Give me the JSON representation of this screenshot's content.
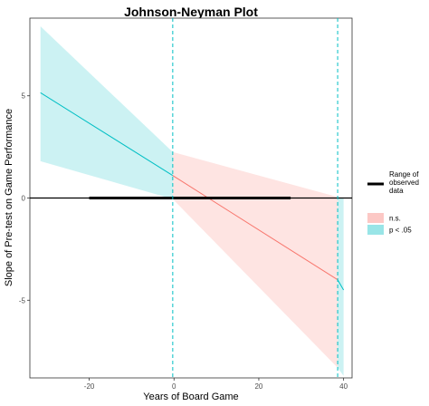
{
  "chart_data": {
    "type": "line",
    "title": "Johnson-Neyman Plot",
    "xlabel": "Years of Board Game",
    "ylabel": "Slope of Pre-test on Game Performance",
    "xlim": [
      -34,
      42
    ],
    "ylim": [
      -8.8,
      8.8
    ],
    "x_ticks": [
      -20,
      0,
      20,
      40
    ],
    "x_tick_labels": [
      "-20",
      "0",
      "20",
      "40"
    ],
    "y_ticks": [
      5,
      0,
      -5
    ],
    "y_tick_labels": [
      "5",
      "0",
      "-5"
    ],
    "grid": false,
    "jn_points": [
      -0.3,
      38.6
    ],
    "horizontal_reference": 0,
    "series": [
      {
        "name": "p < .05",
        "color": "#00BFC4",
        "x": [
          -31.5,
          -0.3
        ],
        "estimate": [
          5.15,
          1.1
        ],
        "lower": [
          1.8,
          -0.05
        ],
        "upper": [
          8.4,
          2.25
        ]
      },
      {
        "name": "n.s.",
        "color": "#F8766D",
        "x": [
          -0.3,
          38.6
        ],
        "estimate": [
          1.1,
          -4.0
        ],
        "lower": [
          -0.05,
          -8.3
        ],
        "upper": [
          2.25,
          0.05
        ]
      },
      {
        "name": "p < .05",
        "color": "#00BFC4",
        "x": [
          38.6,
          40.0
        ],
        "estimate": [
          -4.0,
          -4.5
        ],
        "lower": [
          -8.3,
          -8.7
        ],
        "upper": [
          0.05,
          0.0
        ]
      }
    ],
    "observed_range": {
      "name": "Range of observed data",
      "x": [
        -20,
        27.5
      ],
      "y": 0
    },
    "legend": {
      "placement": "right",
      "range_label": "Range of observed data",
      "items": [
        {
          "label": "n.s.",
          "color": "#F8766D"
        },
        {
          "label": "p < .05",
          "color": "#00BFC4"
        }
      ]
    }
  }
}
